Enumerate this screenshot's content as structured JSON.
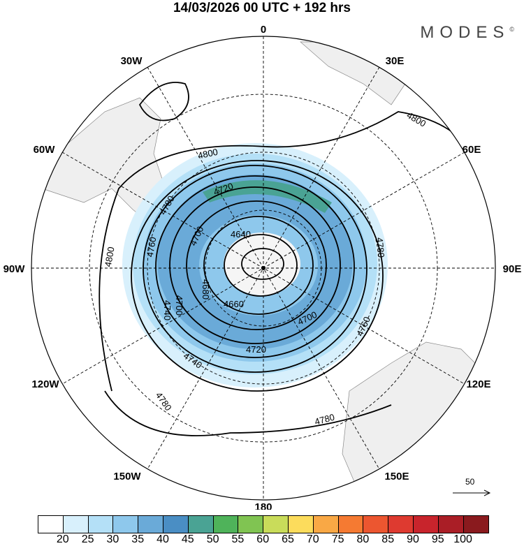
{
  "title": "14/03/2026  00 UTC  + 192 hrs",
  "logo": "MODES",
  "logo_mark": "©",
  "longitude_labels": {
    "top": "0",
    "top_right": "30E",
    "right_upper": "60E",
    "right": "90E",
    "right_lower": "120E",
    "bottom_right": "150E",
    "bottom": "180",
    "bottom_left": "150W",
    "left_lower": "120W",
    "left": "90W",
    "left_upper": "60W",
    "top_left": "30W"
  },
  "contour_labels": [
    "4800",
    "4800",
    "4800",
    "4780",
    "4780",
    "4780",
    "4780",
    "4760",
    "4760",
    "4740",
    "4740",
    "4720",
    "4720",
    "4700",
    "4700",
    "4700",
    "4680",
    "4660",
    "4640",
    "4650"
  ],
  "vector_reference": "50",
  "colorbar": {
    "ticks": [
      "20",
      "25",
      "30",
      "35",
      "40",
      "45",
      "50",
      "55",
      "60",
      "65",
      "70",
      "75",
      "80",
      "85",
      "90",
      "95",
      "100"
    ],
    "colors": [
      "#ffffff",
      "#d8f0fc",
      "#b4e0f7",
      "#8ec8ec",
      "#6aaad8",
      "#4a8ec4",
      "#4aa394",
      "#4fb35a",
      "#80c452",
      "#c9dc5a",
      "#fcdc5c",
      "#f9a845",
      "#f57a32",
      "#ec5630",
      "#de3a30",
      "#c8242c",
      "#aa1e26",
      "#8a1a1e"
    ]
  }
}
